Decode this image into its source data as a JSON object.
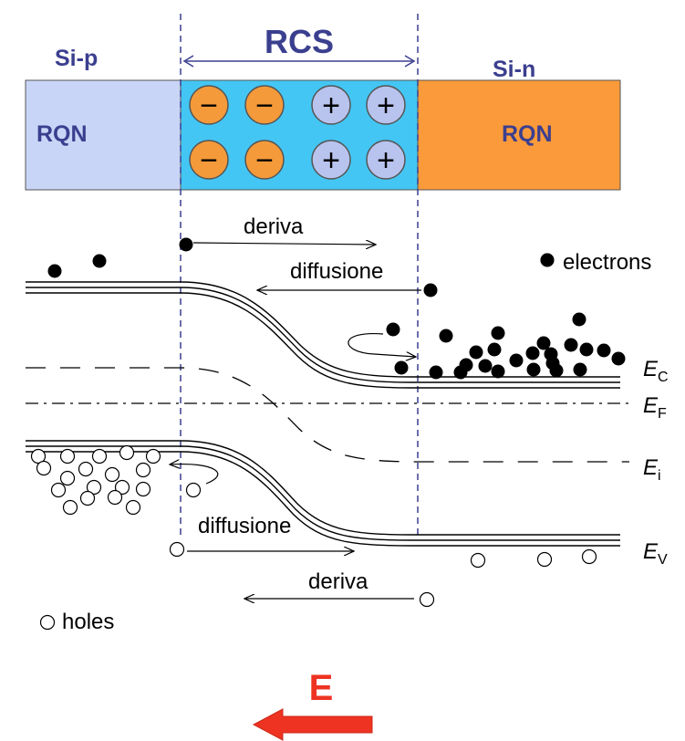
{
  "regions": {
    "p_label": "Si-p",
    "n_label": "Si-n",
    "rcs_label": "RCS",
    "p_rqn": "RQN",
    "n_rqn": "RQN"
  },
  "charges": {
    "minus_symbol": "−",
    "plus_symbol": "+"
  },
  "arrows": {
    "electron_drift": "deriva",
    "electron_diffusion": "diffusione",
    "hole_diffusion": "diffusione",
    "hole_drift": "deriva"
  },
  "legend": {
    "electrons": "electrons",
    "holes": "holes"
  },
  "levels": {
    "ec_main": "E",
    "ec_sub": "C",
    "ef_main": "E",
    "ef_sub": "F",
    "ei_main": "E",
    "ei_sub": "i",
    "ev_main": "E",
    "ev_sub": "V"
  },
  "field": {
    "label": "E"
  },
  "colors": {
    "p_region": "#c9d5f6",
    "depletion": "#44c6f4",
    "n_region": "#fb9a3a",
    "minus_fill": "#f59a3a",
    "plus_fill": "#b8c3ee",
    "label_blue": "#3b3f8f",
    "field_red": "#ee3322",
    "field_arrow": "#ee3322"
  }
}
